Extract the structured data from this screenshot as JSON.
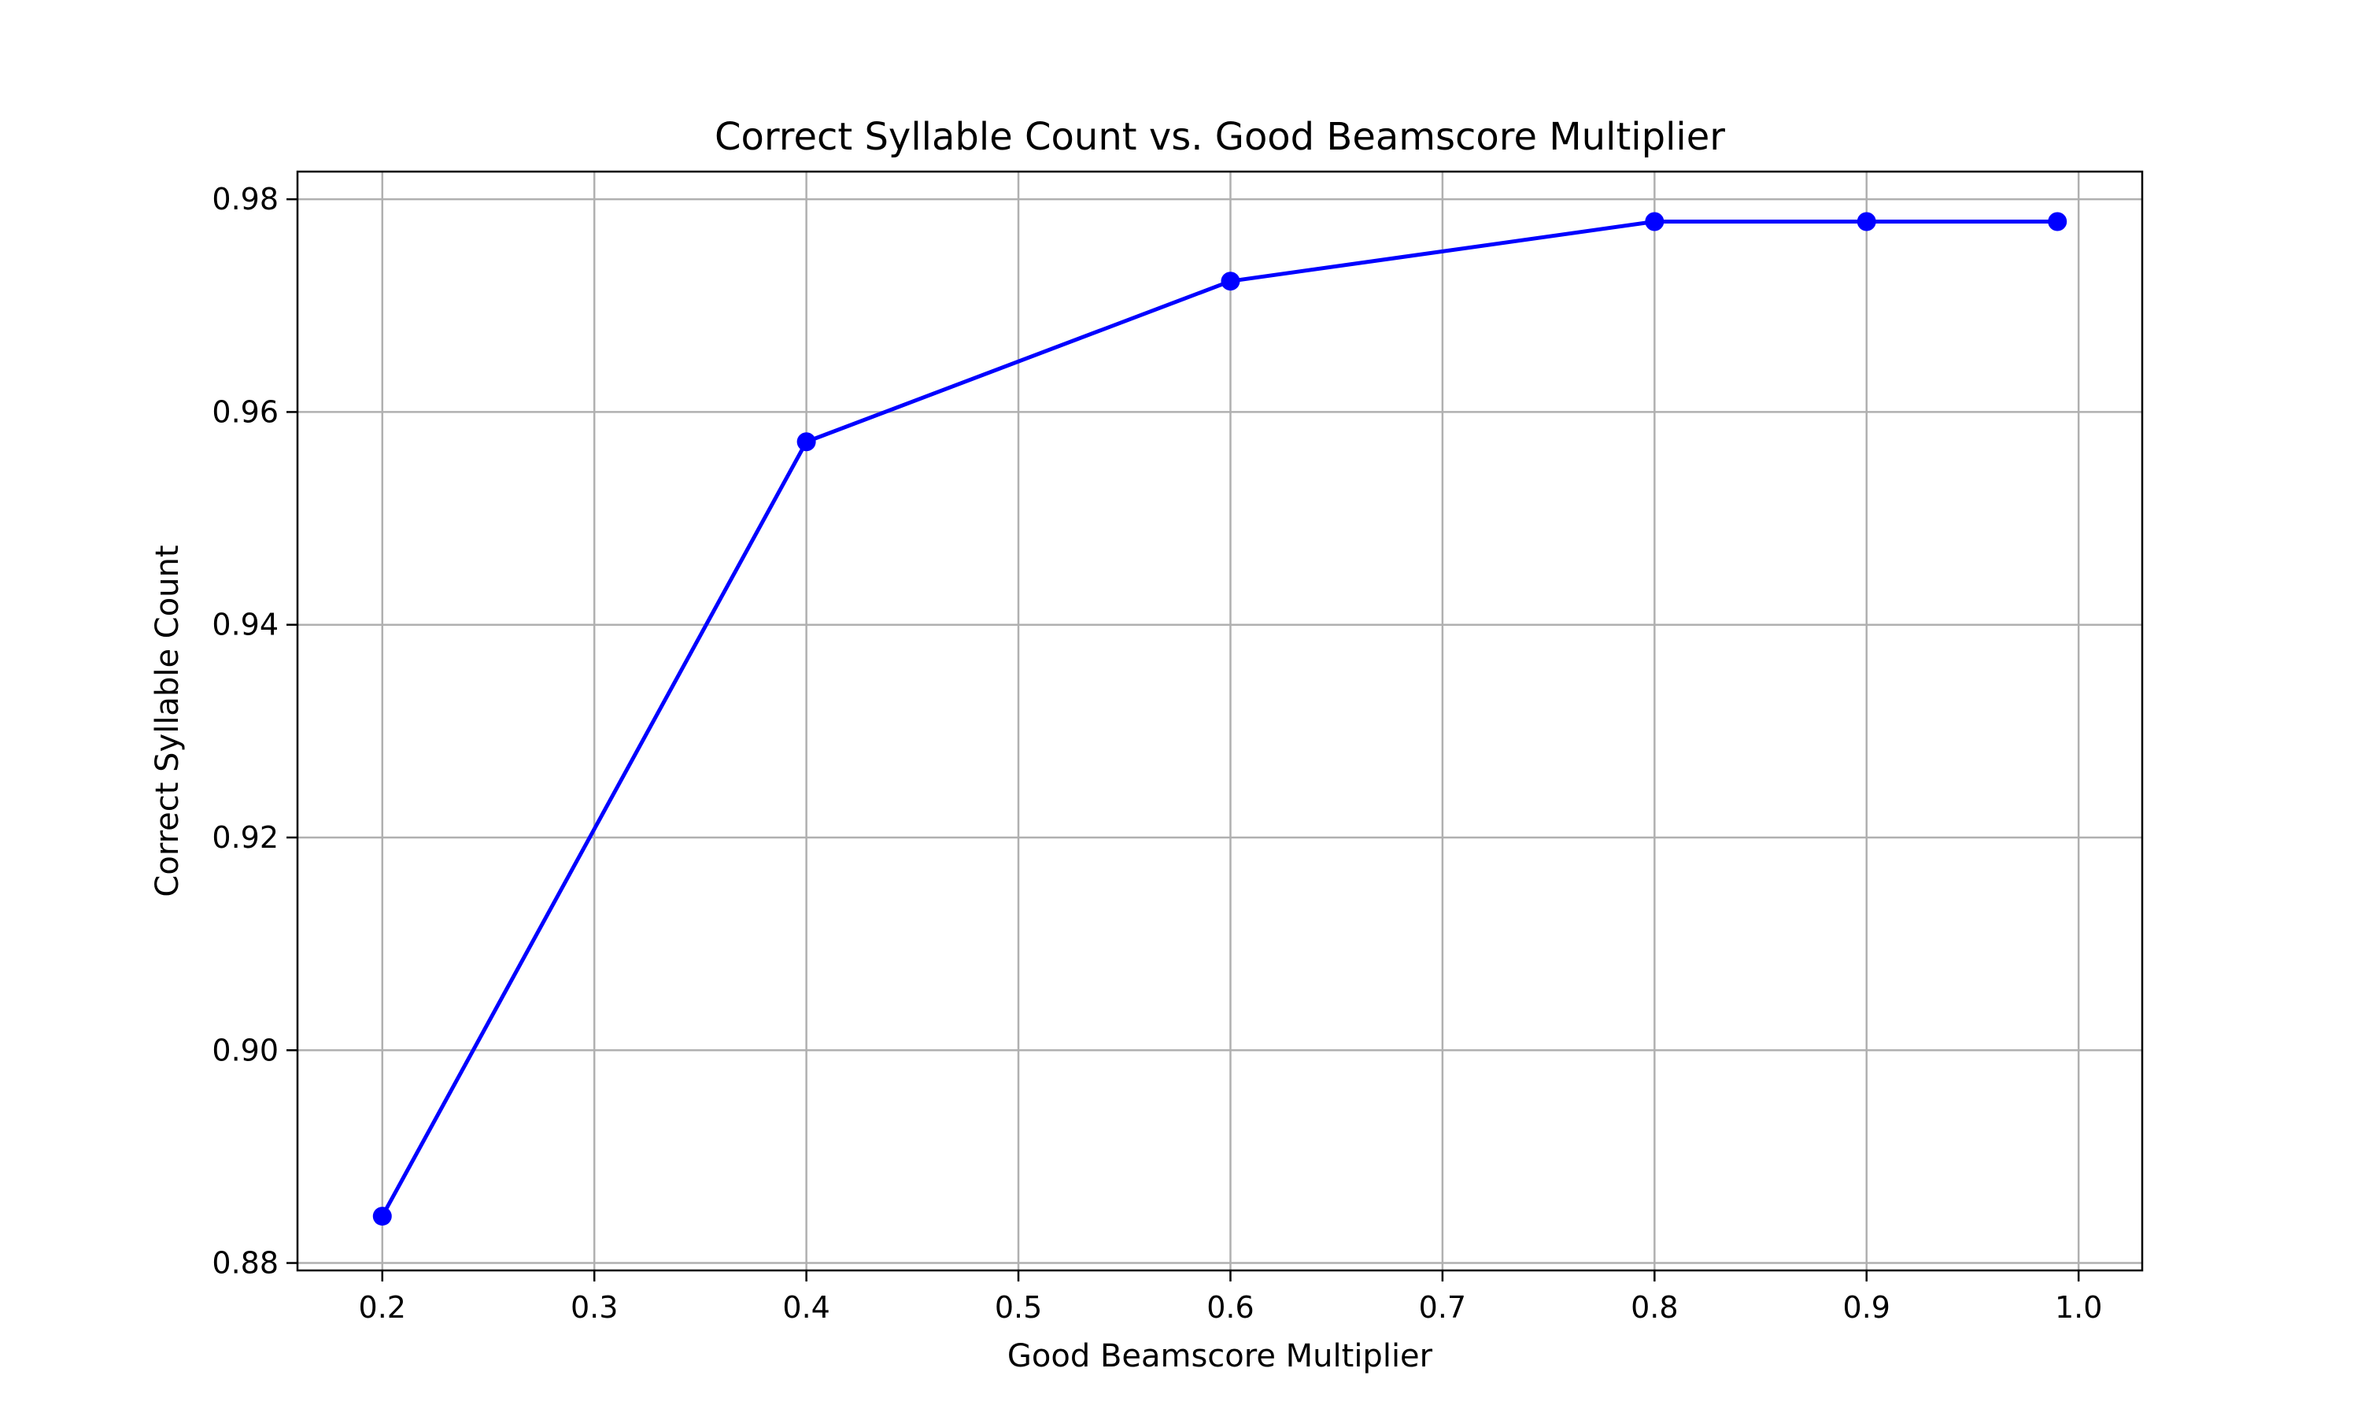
{
  "chart_data": {
    "type": "line",
    "title": "Correct Syllable Count vs. Good Beamscore Multiplier",
    "xlabel": "Good Beamscore Multiplier",
    "ylabel": "Correct Syllable Count",
    "xlim": [
      0.16,
      1.03
    ],
    "ylim": [
      0.8793,
      0.9826
    ],
    "xticks": [
      0.2,
      0.3,
      0.4,
      0.5,
      0.6,
      0.7,
      0.8,
      0.9,
      1.0
    ],
    "xtick_labels": [
      "0.2",
      "0.3",
      "0.4",
      "0.5",
      "0.6",
      "0.7",
      "0.8",
      "0.9",
      "1.0"
    ],
    "yticks": [
      0.88,
      0.9,
      0.92,
      0.94,
      0.96,
      0.98
    ],
    "ytick_labels": [
      "0.88",
      "0.90",
      "0.92",
      "0.94",
      "0.96",
      "0.98"
    ],
    "grid": true,
    "legend": "none",
    "series": [
      {
        "color": "#0000ff",
        "marker": "circle",
        "x": [
          0.2,
          0.4,
          0.6,
          0.8,
          0.9,
          0.99
        ],
        "y": [
          0.8844,
          0.9572,
          0.9723,
          0.9779,
          0.9779,
          0.9779
        ]
      }
    ]
  },
  "colors": {
    "line": "#0000ff",
    "grid": "#b0b0b0",
    "axes": "#000000",
    "background": "#ffffff"
  }
}
